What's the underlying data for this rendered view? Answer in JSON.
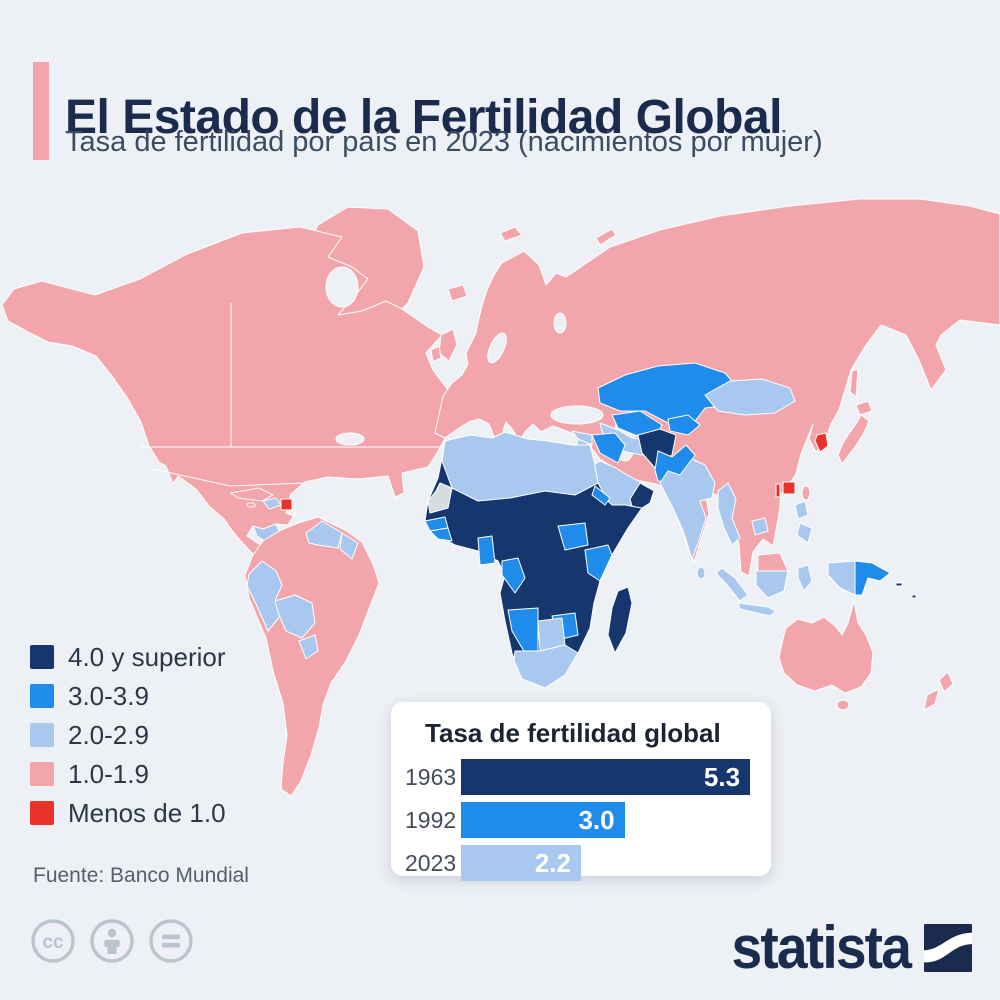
{
  "header": {
    "title": "El Estado de la Fertilidad Global",
    "subtitle": "Tasa de fertilidad por país en 2023 (nacimientos por mujer)"
  },
  "legend": {
    "items": [
      {
        "label": "4.0 y superior",
        "color": "#16376e"
      },
      {
        "label": "3.0-3.9",
        "color": "#1f8ceb"
      },
      {
        "label": "2.0-2.9",
        "color": "#a8c8ef"
      },
      {
        "label": "1.0-1.9",
        "color": "#f2a6ab"
      },
      {
        "label": "Menos de 1.0",
        "color": "#e8332a"
      }
    ]
  },
  "chart_data": [
    {
      "type": "bar",
      "title": "Tasa de fertilidad global",
      "categories": [
        "1963",
        "1992",
        "2023"
      ],
      "values": [
        5.3,
        3.0,
        2.2
      ],
      "value_labels": [
        "5.3",
        "3.0",
        "2.2"
      ],
      "bar_colors": [
        "#16376e",
        "#1f8ceb",
        "#a8c8ef"
      ],
      "orientation": "horizontal",
      "xlim": [
        0,
        5.5
      ],
      "grid": false,
      "value_label_position": "inside-end"
    },
    {
      "type": "heatmap",
      "subtype": "world-choropleth",
      "title": "Tasa de fertilidad por país en 2023",
      "buckets": [
        "4.0 y superior",
        "3.0-3.9",
        "2.0-2.9",
        "1.0-1.9",
        "Menos de 1.0"
      ],
      "bucket_colors": [
        "#16376e",
        "#1f8ceb",
        "#a8c8ef",
        "#f2a6ab",
        "#e8332a"
      ],
      "regions_by_bucket": {
        "4.0 y superior": [
          "África subsahariana (mayoría)",
          "Afganistán",
          "Yemen",
          "Omán",
          "Somalia",
          "Madagascar",
          "Mauritania"
        ],
        "3.0-3.9": [
          "Kazajistán",
          "Uzbekistán",
          "Pakistán",
          "Irak",
          "Senegal",
          "Ghana",
          "Sudán del Sur",
          "Kenia",
          "Zimbabue",
          "Namibia",
          "Papúa Nueva Guinea"
        ],
        "2.0-2.9": [
          "Norte de África",
          "Arabia Saudita",
          "Siria",
          "Turkmenistán",
          "Mongolia",
          "India",
          "Myanmar",
          "Filipinas",
          "Indonesia",
          "Sudáfrica",
          "Botsuana",
          "Venezuela",
          "Perú",
          "Bolivia",
          "Paraguay",
          "Guatemala",
          "Haití"
        ],
        "1.0-1.9": [
          "Estados Unidos",
          "Canadá",
          "Groenlandia",
          "México",
          "Brasil",
          "Argentina",
          "Chile",
          "Colombia",
          "Europa",
          "Rusia",
          "Turquía",
          "Irán",
          "China",
          "Japón",
          "Tailandia",
          "Vietnam",
          "Malasia",
          "Australia",
          "Nueva Zelanda"
        ],
        "Menos de 1.0": [
          "Corea del Sur",
          "Hong Kong",
          "Macao",
          "Puerto Rico"
        ]
      }
    }
  ],
  "footer": {
    "source": "Fuente: Banco Mundial",
    "license_icons": [
      "cc-icon",
      "attribution-person-icon",
      "equals-icon"
    ],
    "brand": "statista"
  },
  "colors": {
    "background": "#edf0f4",
    "accent_bar": "#f4a9ad",
    "title_text": "#1b2b4d",
    "subtitle_text": "#3c4d63",
    "bucket_4plus": "#16376e",
    "bucket_3": "#1f8ceb",
    "bucket_2": "#a8c8ef",
    "bucket_1": "#f2a6ab",
    "bucket_below1": "#e8332a",
    "no_data": "#d8dcdf",
    "card": "#ffffff",
    "source_text": "#55606d",
    "license_icon": "#bac4cd"
  }
}
